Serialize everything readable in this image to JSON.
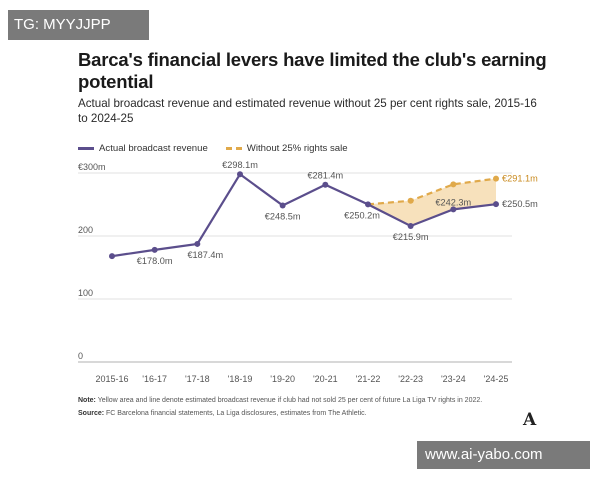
{
  "watermark_top": "TG: MYYJJPP",
  "watermark_bottom": "www.ai-yabo.com",
  "logo": "A",
  "note_label": "Note:",
  "note_text": "Yellow area and line denote estimated broadcast revenue if club had not sold 25 per cent of future La Liga TV rights in 2022.",
  "source_label": "Source:",
  "source_text": "FC Barcelona financial statements, La Liga disclosures, estimates from The Athletic.",
  "colors": {
    "actual": "#5b4e8c",
    "estimated": "#e0a94a",
    "fill": "#f6dcb0"
  },
  "chart_data": {
    "type": "line",
    "title": "Barca's financial levers have limited the club's earning potential",
    "subtitle": "Actual broadcast revenue and estimated revenue without 25 per cent rights sale, 2015-16 to 2024-25",
    "categories": [
      "2015-16",
      "'16-17",
      "'17-18",
      "'18-19",
      "'19-20",
      "'20-21",
      "'21-22",
      "'22-23",
      "'23-24",
      "'24-25"
    ],
    "ylim": [
      0,
      300
    ],
    "yticks": [
      0,
      100,
      200,
      300
    ],
    "ytick_labels": [
      "0",
      "100",
      "200",
      "€300m"
    ],
    "grid": true,
    "legend_placement": "top-left",
    "series": [
      {
        "name": "Actual broadcast revenue",
        "values": [
          168,
          178.0,
          187.4,
          298.1,
          248.5,
          281.4,
          250.2,
          215.9,
          242.3,
          250.5
        ],
        "labels": [
          null,
          "€178.0m",
          "€187.4m",
          "€298.1m",
          "€248.5m",
          "€281.4m",
          "€250.2m",
          "€215.9m",
          "€242.3m",
          "€250.5m"
        ]
      },
      {
        "name": "Without 25% rights sale",
        "values": [
          null,
          null,
          null,
          null,
          null,
          null,
          250.2,
          256,
          282,
          291.1
        ],
        "labels": [
          null,
          null,
          null,
          null,
          null,
          null,
          null,
          null,
          null,
          "€291.1m"
        ]
      }
    ]
  }
}
